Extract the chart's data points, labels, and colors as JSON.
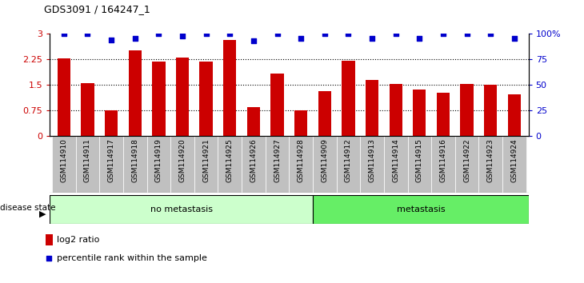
{
  "title": "GDS3091 / 164247_1",
  "samples": [
    "GSM114910",
    "GSM114911",
    "GSM114917",
    "GSM114918",
    "GSM114919",
    "GSM114920",
    "GSM114921",
    "GSM114925",
    "GSM114926",
    "GSM114927",
    "GSM114928",
    "GSM114909",
    "GSM114912",
    "GSM114913",
    "GSM114914",
    "GSM114915",
    "GSM114916",
    "GSM114922",
    "GSM114923",
    "GSM114924"
  ],
  "log2_ratio": [
    2.28,
    1.55,
    0.76,
    2.52,
    2.19,
    2.3,
    2.19,
    2.82,
    0.85,
    1.83,
    0.76,
    1.32,
    2.22,
    1.65,
    1.52,
    1.37,
    1.28,
    1.53,
    1.5,
    1.22
  ],
  "percentile_rank": [
    3.0,
    3.0,
    2.82,
    2.88,
    3.0,
    2.95,
    3.0,
    3.0,
    2.8,
    3.0,
    2.88,
    3.0,
    3.0,
    2.88,
    3.0,
    2.88,
    3.0,
    3.0,
    3.0,
    2.88
  ],
  "no_metastasis_count": 11,
  "metastasis_count": 9,
  "bar_color": "#cc0000",
  "dot_color": "#0000cc",
  "no_metastasis_color": "#ccffcc",
  "metastasis_color": "#66ee66",
  "tick_bg_color": "#c0c0c0",
  "ylim_left": [
    0,
    3.0
  ],
  "yticks_left": [
    0,
    0.75,
    1.5,
    2.25,
    3.0
  ],
  "ytick_labels_left": [
    "0",
    "0.75",
    "1.5",
    "2.25",
    "3"
  ],
  "yticks_right": [
    0,
    0.75,
    1.5,
    2.25,
    3.0
  ],
  "ytick_labels_right": [
    "0",
    "25",
    "50",
    "75",
    "100%"
  ],
  "dotted_lines": [
    0.75,
    1.5,
    2.25
  ],
  "disease_state_label": "disease state",
  "no_metastasis_label": "no metastasis",
  "metastasis_label": "metastasis",
  "legend_log2": "log2 ratio",
  "legend_pct": "percentile rank within the sample"
}
